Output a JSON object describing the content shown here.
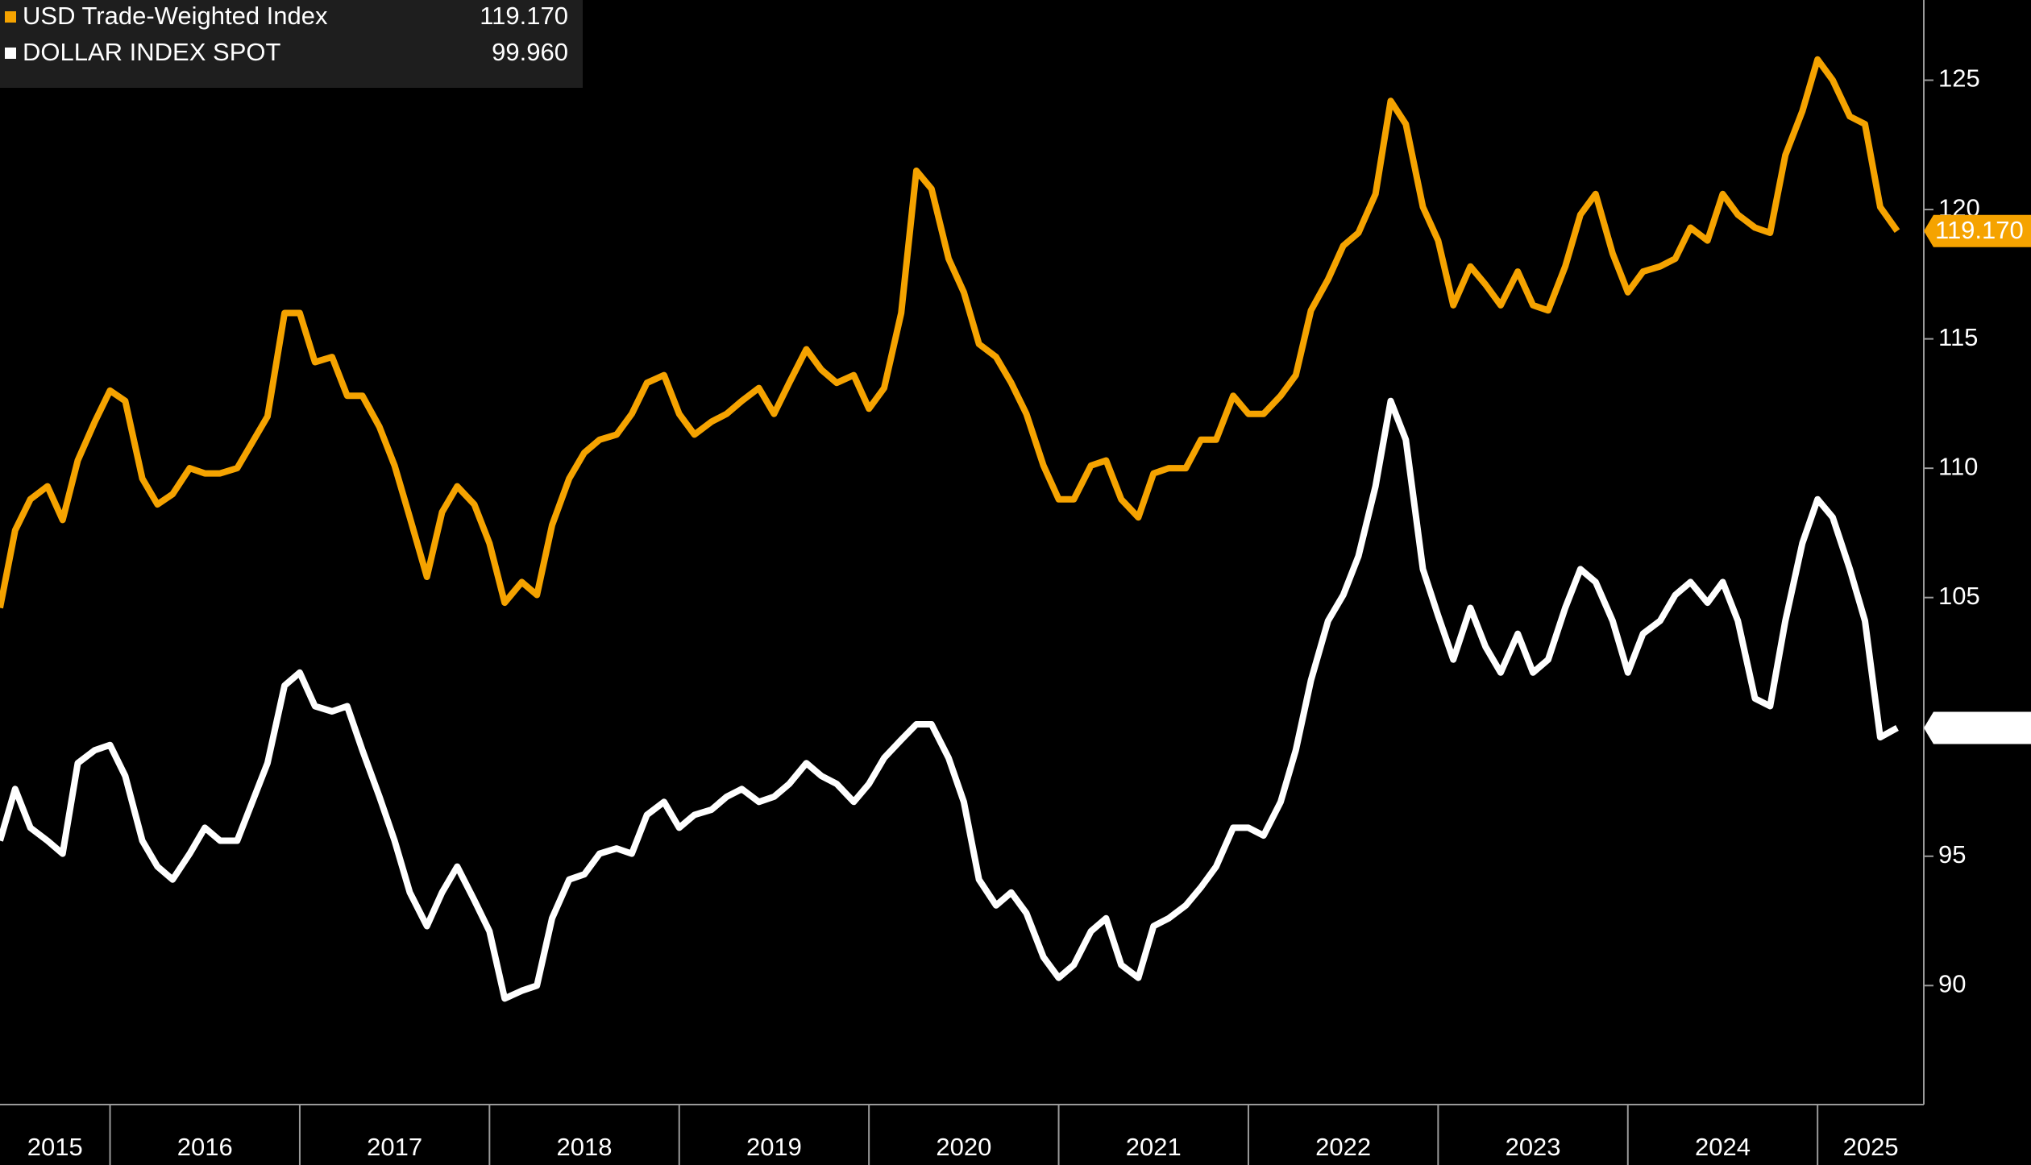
{
  "chart_data": {
    "type": "line",
    "x": [
      2015.42,
      2015.5,
      2015.58,
      2015.67,
      2015.75,
      2015.83,
      2015.92,
      2016,
      2016.08,
      2016.17,
      2016.25,
      2016.33,
      2016.42,
      2016.5,
      2016.58,
      2016.67,
      2016.75,
      2016.83,
      2016.92,
      2017,
      2017.08,
      2017.17,
      2017.25,
      2017.33,
      2017.42,
      2017.5,
      2017.58,
      2017.67,
      2017.75,
      2017.83,
      2017.92,
      2018,
      2018.08,
      2018.17,
      2018.25,
      2018.33,
      2018.42,
      2018.5,
      2018.58,
      2018.67,
      2018.75,
      2018.83,
      2018.92,
      2019,
      2019.08,
      2019.17,
      2019.25,
      2019.33,
      2019.42,
      2019.5,
      2019.58,
      2019.67,
      2019.75,
      2019.83,
      2019.92,
      2020,
      2020.08,
      2020.17,
      2020.25,
      2020.33,
      2020.42,
      2020.5,
      2020.58,
      2020.67,
      2020.75,
      2020.83,
      2020.92,
      2021,
      2021.08,
      2021.17,
      2021.25,
      2021.33,
      2021.42,
      2021.5,
      2021.58,
      2021.67,
      2021.75,
      2021.83,
      2021.92,
      2022,
      2022.08,
      2022.17,
      2022.25,
      2022.33,
      2022.42,
      2022.5,
      2022.58,
      2022.67,
      2022.75,
      2022.83,
      2022.92,
      2023,
      2023.08,
      2023.17,
      2023.25,
      2023.33,
      2023.42,
      2023.5,
      2023.58,
      2023.67,
      2023.75,
      2023.83,
      2023.92,
      2024,
      2024.08,
      2024.17,
      2024.25,
      2024.33,
      2024.42,
      2024.5,
      2024.58,
      2024.67,
      2024.75,
      2024.83,
      2024.92,
      2025,
      2025.08,
      2025.17,
      2025.25,
      2025.33,
      2025.42
    ],
    "series": [
      {
        "name": "USD Trade-Weighted Index",
        "color": "#f5a300",
        "last_label": "119.170",
        "values": [
          104.6,
          107.6,
          108.8,
          109.3,
          108,
          110.3,
          111.8,
          113,
          112.6,
          109.6,
          108.6,
          109,
          110,
          109.8,
          109.8,
          110,
          111,
          112,
          116,
          116,
          114.1,
          114.3,
          112.8,
          112.8,
          111.6,
          110.1,
          108.1,
          105.8,
          108.3,
          109.3,
          108.6,
          107.1,
          104.8,
          105.6,
          105.1,
          107.8,
          109.6,
          110.6,
          111.1,
          111.3,
          112.1,
          113.3,
          113.6,
          112.1,
          111.3,
          111.8,
          112.1,
          112.6,
          113.1,
          112.1,
          113.3,
          114.6,
          113.8,
          113.3,
          113.6,
          112.3,
          113.1,
          116,
          121.5,
          120.8,
          118.1,
          116.8,
          114.8,
          114.3,
          113.3,
          112.1,
          110.1,
          108.8,
          108.8,
          110.1,
          110.3,
          108.8,
          108.1,
          109.8,
          110,
          110,
          111.1,
          111.1,
          112.8,
          112.1,
          112.1,
          112.8,
          113.6,
          116.1,
          117.3,
          118.6,
          119.1,
          120.6,
          124.2,
          123.3,
          120.1,
          118.8,
          116.3,
          117.8,
          117.1,
          116.3,
          117.6,
          116.3,
          116.1,
          117.8,
          119.8,
          120.6,
          118.3,
          116.8,
          117.6,
          117.8,
          118.1,
          119.3,
          118.8,
          120.6,
          119.8,
          119.3,
          119.1,
          122.1,
          123.8,
          125.8,
          125,
          123.6,
          123.3,
          120.1,
          119.17
        ]
      },
      {
        "name": "DOLLAR INDEX SPOT",
        "color": "#ffffff",
        "last_label": "99.960",
        "values": [
          95.6,
          97.6,
          96.1,
          95.6,
          95.1,
          98.6,
          99.1,
          99.3,
          98.1,
          95.6,
          94.6,
          94.1,
          95.1,
          96.1,
          95.6,
          95.6,
          97.1,
          98.6,
          101.6,
          102.1,
          100.8,
          100.6,
          100.8,
          99.1,
          97.3,
          95.6,
          93.6,
          92.3,
          93.6,
          94.6,
          93.3,
          92.1,
          89.5,
          89.8,
          90,
          92.6,
          94.1,
          94.3,
          95.1,
          95.3,
          95.1,
          96.6,
          97.1,
          96.1,
          96.6,
          96.8,
          97.3,
          97.6,
          97.1,
          97.3,
          97.8,
          98.6,
          98.1,
          97.8,
          97.1,
          97.8,
          98.8,
          99.5,
          100.1,
          100.1,
          98.8,
          97.1,
          94.1,
          93.1,
          93.6,
          92.8,
          91.1,
          90.3,
          90.8,
          92.1,
          92.6,
          90.8,
          90.3,
          92.3,
          92.6,
          93.1,
          93.8,
          94.6,
          96.1,
          96.1,
          95.8,
          97.1,
          99.1,
          101.8,
          104.1,
          105.1,
          106.6,
          109.3,
          112.6,
          111.1,
          106.1,
          104.3,
          102.6,
          104.6,
          103.1,
          102.1,
          103.6,
          102.1,
          102.6,
          104.6,
          106.1,
          105.6,
          104.1,
          102.1,
          103.6,
          104.1,
          105.1,
          105.6,
          104.8,
          105.6,
          104.1,
          101.1,
          100.8,
          104.1,
          107.1,
          108.8,
          108.1,
          106.1,
          104.1,
          99.6,
          99.96
        ]
      }
    ],
    "xlim": [
      2015.42,
      2025.56
    ],
    "xticks": [
      2015,
      2016,
      2017,
      2018,
      2019,
      2020,
      2021,
      2022,
      2023,
      2024,
      2025
    ],
    "ylim": [
      85.4,
      128.1
    ],
    "yticks": [
      90,
      95,
      100,
      105,
      110,
      115,
      120,
      125
    ],
    "legend": "top-left"
  }
}
